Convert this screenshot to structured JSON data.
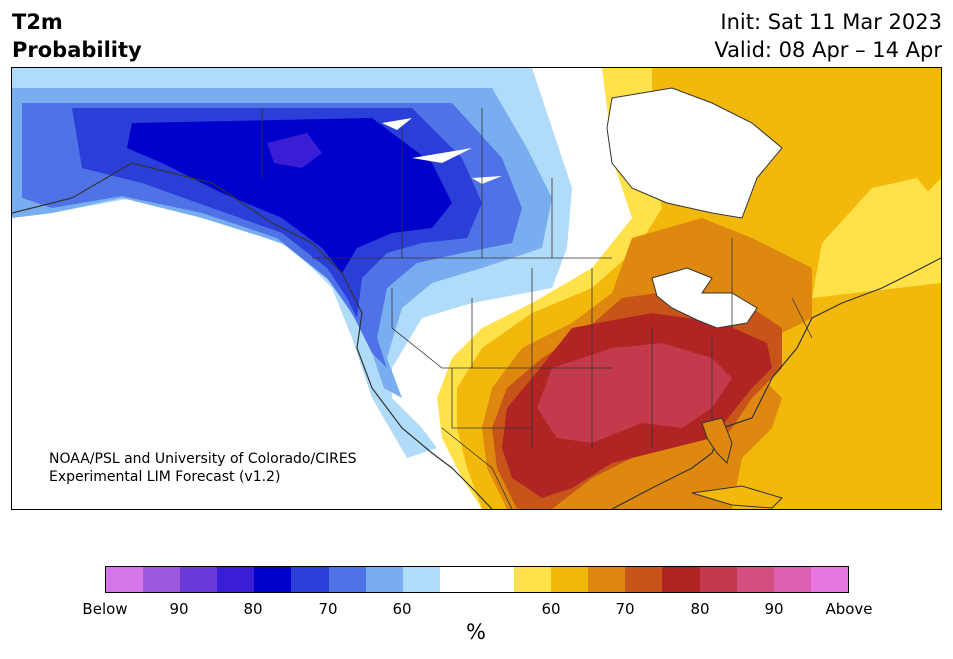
{
  "header": {
    "title_line1": "T2m",
    "title_line2": "Probability",
    "init": "Init: Sat 11 Mar 2023",
    "valid": "Valid: 08 Apr – 14 Apr"
  },
  "map": {
    "credit_line1": "NOAA/PSL and University of Colorado/CIRES",
    "credit_line2": "Experimental LIM Forecast (v1.2)"
  },
  "colorbar": {
    "colors": [
      "#d575e8",
      "#9c59e0",
      "#6a3ad8",
      "#3a1ed6",
      "#0000cc",
      "#2a3ed8",
      "#4f72e6",
      "#78aef0",
      "#b0dcfa",
      "#ffffff",
      "#ffffff",
      "#ffe24a",
      "#f2b90c",
      "#de880f",
      "#c75418",
      "#b02424",
      "#c23a4c",
      "#d24f7f",
      "#dc5fb2",
      "#e777df"
    ],
    "tick_labels": [
      "Below",
      "90",
      "80",
      "70",
      "60",
      "60",
      "70",
      "80",
      "90",
      "Above"
    ],
    "unit_label": "%"
  }
}
